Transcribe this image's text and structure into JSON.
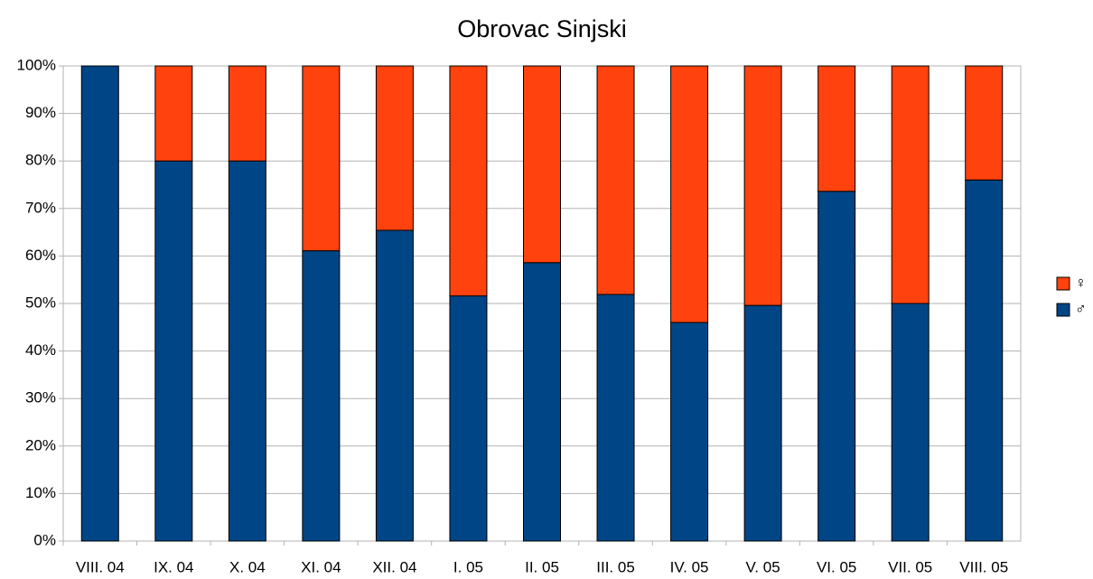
{
  "chart_data": {
    "type": "stacked_bar_percent",
    "title": "Obrovac Sinjski",
    "categories": [
      "VIII. 04",
      "IX. 04",
      "X. 04",
      "XI. 04",
      "XII. 04",
      "I. 05",
      "II. 05",
      "III. 05",
      "IV. 05",
      "V. 05",
      "VI. 05",
      "VII. 05",
      "VIII. 05"
    ],
    "series": [
      {
        "name": "♂",
        "color": "#004586",
        "values": [
          100,
          80,
          80,
          61.1,
          65.4,
          51.6,
          58.6,
          51.9,
          46,
          49.6,
          73.6,
          50,
          76
        ]
      },
      {
        "name": "♀",
        "color": "#ff420e",
        "values": [
          0,
          20,
          20,
          38.9,
          34.6,
          48.4,
          41.4,
          48.1,
          54,
          50.4,
          26.4,
          50,
          24
        ]
      }
    ],
    "ylim": [
      0,
      100
    ],
    "yticks": [
      {
        "value": 0,
        "label": "0%"
      },
      {
        "value": 10,
        "label": "10%"
      },
      {
        "value": 20,
        "label": "20%"
      },
      {
        "value": 30,
        "label": "30%"
      },
      {
        "value": 40,
        "label": "40%"
      },
      {
        "value": 50,
        "label": "50%"
      },
      {
        "value": 60,
        "label": "60%"
      },
      {
        "value": 70,
        "label": "70%"
      },
      {
        "value": 80,
        "label": "80%"
      },
      {
        "value": 90,
        "label": "90%"
      },
      {
        "value": 100,
        "label": "100%"
      }
    ],
    "grid": true,
    "legend": "right"
  }
}
